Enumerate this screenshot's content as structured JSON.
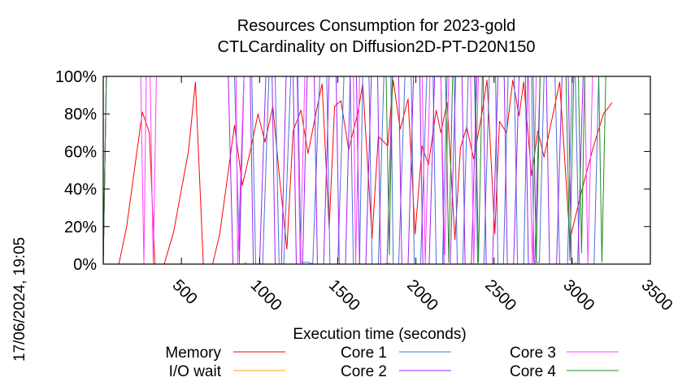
{
  "chart_data": {
    "type": "line",
    "title": [
      "Resources Consumption for 2023-gold",
      "CTLCardinality on Diffusion2D-PT-D20N150"
    ],
    "xlabel": "Execution time (seconds)",
    "ylabel": "",
    "xlim": [
      0,
      3500
    ],
    "ylim": [
      0,
      100
    ],
    "x_ticks": [
      500,
      1000,
      1500,
      2000,
      2500,
      3000,
      3500
    ],
    "y_ticks": [
      "0%",
      "20%",
      "40%",
      "60%",
      "80%",
      "100%"
    ],
    "grid": false,
    "legend_position": "bottom",
    "timestamp": "17/06/2024, 19:05",
    "series": [
      {
        "name": "Memory",
        "color": "#ff0000",
        "points": [
          [
            0,
            0
          ],
          [
            100,
            0
          ],
          [
            150,
            20
          ],
          [
            250,
            81
          ],
          [
            295,
            70
          ],
          [
            330,
            0
          ],
          [
            390,
            0
          ],
          [
            450,
            17
          ],
          [
            545,
            60
          ],
          [
            590,
            97
          ],
          [
            640,
            0
          ],
          [
            700,
            0
          ],
          [
            745,
            16
          ],
          [
            840,
            74
          ],
          [
            890,
            42
          ],
          [
            940,
            60
          ],
          [
            990,
            80
          ],
          [
            1035,
            65
          ],
          [
            1085,
            84
          ],
          [
            1130,
            44
          ],
          [
            1175,
            8
          ],
          [
            1215,
            71
          ],
          [
            1265,
            82
          ],
          [
            1310,
            59
          ],
          [
            1360,
            80
          ],
          [
            1400,
            96
          ],
          [
            1445,
            19
          ],
          [
            1480,
            84
          ],
          [
            1520,
            87
          ],
          [
            1570,
            61
          ],
          [
            1630,
            81
          ],
          [
            1660,
            96
          ],
          [
            1720,
            14
          ],
          [
            1760,
            68
          ],
          [
            1820,
            63
          ],
          [
            1855,
            98
          ],
          [
            1900,
            72
          ],
          [
            1950,
            88
          ],
          [
            1995,
            16
          ],
          [
            2040,
            63
          ],
          [
            2080,
            53
          ],
          [
            2130,
            82
          ],
          [
            2160,
            70
          ],
          [
            2200,
            86
          ],
          [
            2250,
            13
          ],
          [
            2285,
            62
          ],
          [
            2325,
            73
          ],
          [
            2370,
            56
          ],
          [
            2420,
            79
          ],
          [
            2455,
            98
          ],
          [
            2505,
            16
          ],
          [
            2535,
            76
          ],
          [
            2580,
            70
          ],
          [
            2620,
            98
          ],
          [
            2660,
            79
          ],
          [
            2690,
            97
          ],
          [
            2740,
            47
          ],
          [
            2780,
            71
          ],
          [
            2820,
            57
          ],
          [
            2880,
            81
          ],
          [
            2920,
            97
          ],
          [
            2985,
            13
          ],
          [
            3055,
            37
          ],
          [
            3130,
            61
          ],
          [
            3200,
            80
          ],
          [
            3255,
            86
          ]
        ]
      },
      {
        "name": "I/O wait",
        "color": "#ffa500",
        "points": [
          [
            0,
            0
          ],
          [
            900,
            0
          ],
          [
            910,
            1
          ],
          [
            920,
            0
          ],
          [
            1800,
            0
          ],
          [
            1820,
            1
          ],
          [
            1840,
            0
          ],
          [
            3010,
            0
          ],
          [
            3020,
            1
          ],
          [
            3030,
            0
          ],
          [
            3500,
            0
          ]
        ]
      },
      {
        "name": "Core 1",
        "color": "#4a70d8",
        "points": [
          [
            0,
            0
          ],
          [
            20,
            100
          ],
          [
            840,
            100
          ],
          [
            870,
            7
          ],
          [
            900,
            100
          ],
          [
            950,
            100
          ],
          [
            975,
            0
          ],
          [
            1020,
            0
          ],
          [
            1060,
            100
          ],
          [
            1100,
            100
          ],
          [
            1125,
            0
          ],
          [
            1155,
            0
          ],
          [
            1200,
            100
          ],
          [
            1245,
            100
          ],
          [
            1265,
            1
          ],
          [
            1310,
            1
          ],
          [
            1340,
            0
          ],
          [
            1385,
            100
          ],
          [
            1430,
            100
          ],
          [
            1450,
            0
          ],
          [
            1500,
            0
          ],
          [
            1540,
            100
          ],
          [
            1580,
            100
          ],
          [
            1600,
            0
          ],
          [
            1640,
            0
          ],
          [
            1660,
            100
          ],
          [
            1700,
            100
          ],
          [
            1720,
            0
          ],
          [
            1760,
            0
          ],
          [
            1795,
            100
          ],
          [
            1840,
            100
          ],
          [
            1855,
            0
          ],
          [
            1890,
            0
          ],
          [
            1930,
            100
          ],
          [
            1970,
            100
          ],
          [
            1990,
            0
          ],
          [
            2030,
            0
          ],
          [
            2070,
            100
          ],
          [
            2110,
            100
          ],
          [
            2130,
            0
          ],
          [
            2170,
            0
          ],
          [
            2200,
            100
          ],
          [
            2245,
            100
          ],
          [
            2265,
            0
          ],
          [
            2300,
            0
          ],
          [
            2335,
            100
          ],
          [
            2375,
            100
          ],
          [
            2395,
            0
          ],
          [
            2435,
            0
          ],
          [
            2470,
            100
          ],
          [
            2510,
            100
          ],
          [
            2525,
            0
          ],
          [
            2560,
            0
          ],
          [
            2590,
            100
          ],
          [
            2630,
            100
          ],
          [
            2650,
            0
          ],
          [
            2690,
            0
          ],
          [
            2715,
            100
          ],
          [
            2740,
            100
          ],
          [
            2755,
            1
          ],
          [
            2790,
            1
          ],
          [
            2820,
            100
          ],
          [
            2890,
            100
          ],
          [
            2920,
            0
          ],
          [
            2970,
            0
          ],
          [
            3000,
            100
          ],
          [
            3020,
            100
          ],
          [
            3045,
            0
          ],
          [
            3140,
            0
          ],
          [
            3170,
            100
          ],
          [
            3500,
            100
          ]
        ]
      },
      {
        "name": "Core 2",
        "color": "#a020f0",
        "points": [
          [
            0,
            0
          ],
          [
            20,
            100
          ],
          [
            800,
            100
          ],
          [
            830,
            0
          ],
          [
            870,
            0
          ],
          [
            900,
            100
          ],
          [
            940,
            100
          ],
          [
            960,
            0
          ],
          [
            1000,
            0
          ],
          [
            1040,
            100
          ],
          [
            1080,
            100
          ],
          [
            1100,
            0
          ],
          [
            1140,
            0
          ],
          [
            1170,
            100
          ],
          [
            1215,
            100
          ],
          [
            1235,
            0
          ],
          [
            1275,
            0
          ],
          [
            1305,
            100
          ],
          [
            1350,
            100
          ],
          [
            1370,
            0
          ],
          [
            1410,
            0
          ],
          [
            1445,
            100
          ],
          [
            1490,
            100
          ],
          [
            1510,
            0
          ],
          [
            1550,
            0
          ],
          [
            1580,
            100
          ],
          [
            1620,
            100
          ],
          [
            1640,
            0
          ],
          [
            1680,
            0
          ],
          [
            1715,
            100
          ],
          [
            1755,
            100
          ],
          [
            1775,
            0
          ],
          [
            1815,
            0
          ],
          [
            1850,
            100
          ],
          [
            1890,
            100
          ],
          [
            1910,
            0
          ],
          [
            1950,
            0
          ],
          [
            1985,
            100
          ],
          [
            2025,
            100
          ],
          [
            2045,
            0
          ],
          [
            2085,
            0
          ],
          [
            2120,
            100
          ],
          [
            2160,
            100
          ],
          [
            2180,
            0
          ],
          [
            2220,
            0
          ],
          [
            2255,
            100
          ],
          [
            2295,
            100
          ],
          [
            2315,
            0
          ],
          [
            2355,
            0
          ],
          [
            2390,
            100
          ],
          [
            2430,
            100
          ],
          [
            2450,
            0
          ],
          [
            2490,
            0
          ],
          [
            2525,
            100
          ],
          [
            2565,
            100
          ],
          [
            2585,
            0
          ],
          [
            2625,
            0
          ],
          [
            2660,
            100
          ],
          [
            2700,
            100
          ],
          [
            2720,
            0
          ],
          [
            2760,
            0
          ],
          [
            2795,
            100
          ],
          [
            2835,
            100
          ],
          [
            2855,
            0
          ],
          [
            2900,
            0
          ],
          [
            2935,
            100
          ],
          [
            2975,
            100
          ],
          [
            2995,
            0
          ],
          [
            3035,
            0
          ],
          [
            3070,
            100
          ],
          [
            3500,
            100
          ]
        ]
      },
      {
        "name": "Core 3",
        "color": "#ff40ff",
        "points": [
          [
            0,
            0
          ],
          [
            20,
            100
          ],
          [
            240,
            100
          ],
          [
            260,
            0
          ],
          [
            275,
            100
          ],
          [
            300,
            100
          ],
          [
            320,
            0
          ],
          [
            340,
            100
          ],
          [
            850,
            100
          ],
          [
            860,
            0
          ],
          [
            900,
            100
          ],
          [
            1240,
            100
          ],
          [
            1260,
            0
          ],
          [
            1290,
            100
          ],
          [
            1600,
            100
          ],
          [
            1615,
            0
          ],
          [
            1640,
            100
          ],
          [
            2040,
            100
          ],
          [
            2060,
            0
          ],
          [
            2090,
            100
          ],
          [
            2160,
            100
          ],
          [
            2185,
            5
          ],
          [
            2210,
            100
          ],
          [
            2350,
            100
          ],
          [
            2370,
            0
          ],
          [
            2400,
            100
          ],
          [
            2720,
            100
          ],
          [
            2745,
            0
          ],
          [
            2770,
            100
          ],
          [
            3080,
            100
          ],
          [
            3100,
            0
          ],
          [
            3130,
            100
          ],
          [
            3500,
            100
          ]
        ]
      },
      {
        "name": "Core 4",
        "color": "#228b22",
        "points": [
          [
            0,
            0
          ],
          [
            20,
            100
          ],
          [
            1810,
            100
          ],
          [
            1830,
            5
          ],
          [
            1850,
            100
          ],
          [
            2190,
            100
          ],
          [
            2210,
            1
          ],
          [
            2235,
            100
          ],
          [
            2380,
            100
          ],
          [
            2400,
            1
          ],
          [
            2425,
            100
          ],
          [
            2750,
            100
          ],
          [
            2770,
            1
          ],
          [
            2795,
            100
          ],
          [
            2960,
            100
          ],
          [
            2985,
            2
          ],
          [
            3010,
            100
          ],
          [
            3040,
            100
          ],
          [
            3060,
            6
          ],
          [
            3080,
            100
          ],
          [
            3170,
            100
          ],
          [
            3190,
            1
          ],
          [
            3215,
            100
          ],
          [
            3500,
            100
          ]
        ]
      }
    ]
  }
}
